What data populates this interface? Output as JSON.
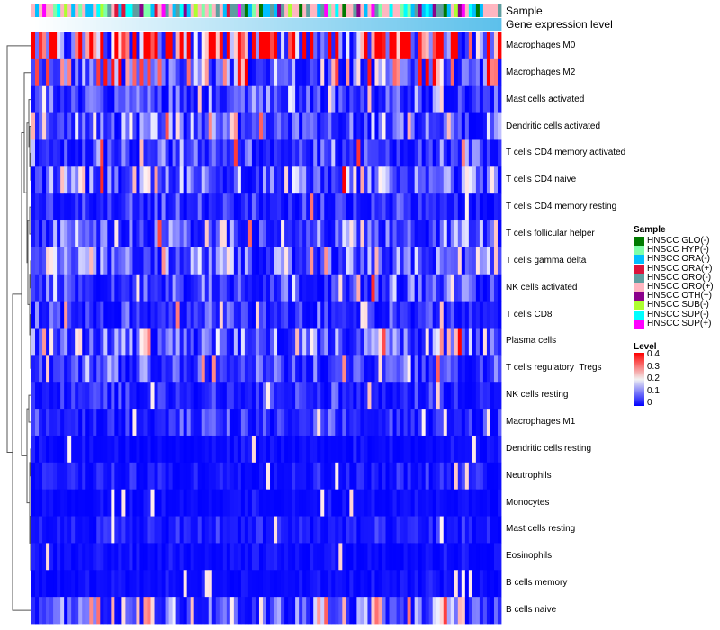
{
  "chart_data": {
    "type": "heatmap",
    "annotations": [
      "Sample",
      "Gene expression level"
    ],
    "rows": [
      "Macrophages M0",
      "Macrophages M2",
      "Mast cells activated",
      "Dendritic cells activated",
      "T cells CD4 memory activated",
      "T cells CD4 naive",
      "T cells CD4 memory resting",
      "T cells follicular helper",
      "T cells gamma delta",
      "NK cells activated",
      "T cells CD8",
      "Plasma cells",
      "T cells regulatory  Tregs",
      "NK cells resting",
      "Macrophages M1",
      "Dendritic cells resting",
      "Neutrophils",
      "Monocytes",
      "Mast cells resting",
      "Eosinophils",
      "B cells memory",
      "B cells naive"
    ],
    "row_mean_levels": [
      0.3,
      0.13,
      0.06,
      0.08,
      0.05,
      0.08,
      0.03,
      0.07,
      0.08,
      0.06,
      0.04,
      0.08,
      0.05,
      0.03,
      0.03,
      0.01,
      0.02,
      0.01,
      0.02,
      0.01,
      0.01,
      0.1
    ],
    "n_columns": 130,
    "sample_legend": {
      "title": "Sample",
      "items": [
        {
          "label": "HNSCC GLO(-)",
          "color": "#007a00"
        },
        {
          "label": "HNSCC HYP(-)",
          "color": "#7fffa8"
        },
        {
          "label": "HNSCC ORA(-)",
          "color": "#00bfff"
        },
        {
          "label": "HNSCC ORA(+)",
          "color": "#dc143c"
        },
        {
          "label": "HNSCC ORO(-)",
          "color": "#5f9ea0"
        },
        {
          "label": "HNSCC ORO(+)",
          "color": "#ffb6c1"
        },
        {
          "label": "HNSCC OTH(+)",
          "color": "#8b008b"
        },
        {
          "label": "HNSCC SUB(-)",
          "color": "#adff2f"
        },
        {
          "label": "HNSCC SUP(-)",
          "color": "#00ffff"
        },
        {
          "label": "HNSCC SUP(+)",
          "color": "#ff00ff"
        }
      ]
    },
    "level_legend": {
      "title": "Level",
      "ticks": [
        "0.4",
        "0.3",
        "0.2",
        "0.1",
        "0"
      ],
      "range": [
        0,
        0.4
      ],
      "colors": [
        "#0000ff",
        "#ffffff",
        "#ff0000"
      ]
    }
  }
}
